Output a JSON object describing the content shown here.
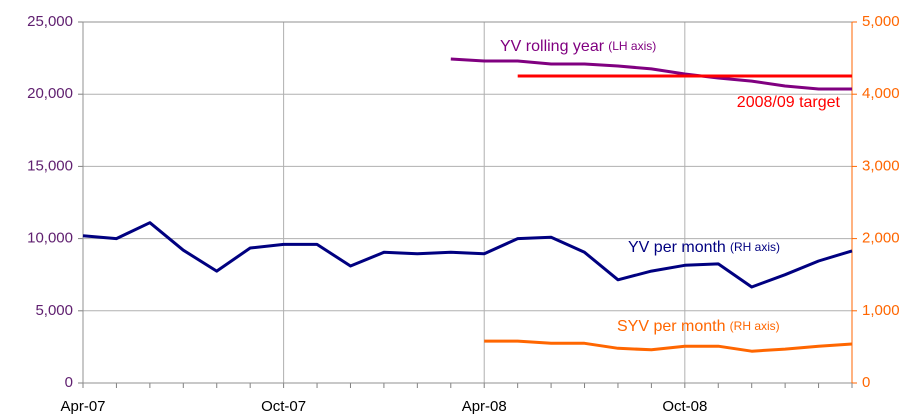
{
  "chart_data": {
    "type": "line",
    "categories": [
      "Apr-07",
      null,
      null,
      null,
      null,
      null,
      "Oct-07",
      null,
      null,
      null,
      null,
      null,
      "Apr-08",
      null,
      null,
      null,
      null,
      null,
      "Oct-08",
      null,
      null,
      null,
      null,
      null
    ],
    "ylim": [
      0,
      25000
    ],
    "yticks": [
      0,
      {
        "value": 5000,
        "label": "5,000"
      },
      {
        "value": 10000,
        "label": "10,000"
      },
      {
        "value": 15000,
        "label": "15,000"
      },
      {
        "value": 20000,
        "label": "20,000"
      },
      {
        "value": 25000,
        "label": "25,000"
      }
    ],
    "y2lim": [
      0,
      5000
    ],
    "y2ticks": [
      0,
      {
        "value": 1000,
        "label": "1,000"
      },
      {
        "value": 2000,
        "label": "2,000"
      },
      {
        "value": 3000,
        "label": "3,000"
      },
      {
        "value": 4000,
        "label": "4,000"
      },
      {
        "value": 5000,
        "label": "5,000"
      }
    ],
    "grid": true,
    "series": [
      {
        "name": "YV rolling year",
        "axis_note": "(LH axis)",
        "color": "#800080",
        "values": [
          null,
          null,
          null,
          null,
          null,
          null,
          null,
          null,
          null,
          null,
          null,
          22440,
          22300,
          22300,
          22090,
          22090,
          21950,
          21750,
          21400,
          21120,
          20910,
          20570,
          20360,
          20360
        ]
      },
      {
        "name": "2008/09 target",
        "color": "#ff0000",
        "values": [
          null,
          null,
          null,
          null,
          null,
          null,
          null,
          null,
          null,
          null,
          null,
          null,
          null,
          21260,
          21260,
          21260,
          21260,
          21260,
          21260,
          21260,
          21260,
          21260,
          21260,
          21260
        ]
      },
      {
        "name": "YV per month",
        "axis_note": "(RH axis)",
        "color": "#000080",
        "axis": "y2",
        "values": [
          2040,
          2000,
          2220,
          1840,
          1550,
          1870,
          1920,
          1920,
          1620,
          1810,
          1790,
          1810,
          1790,
          2000,
          2020,
          1810,
          1430,
          1550,
          1630,
          1650,
          1330,
          1500,
          1690,
          1830
        ]
      },
      {
        "name": "SYV per month",
        "axis_note": "(RH axis)",
        "color": "#ff6600",
        "axis": "y2",
        "values": [
          null,
          null,
          null,
          null,
          null,
          null,
          null,
          null,
          null,
          null,
          null,
          null,
          580,
          580,
          550,
          550,
          480,
          460,
          510,
          510,
          440,
          470,
          510,
          540
        ]
      }
    ]
  }
}
